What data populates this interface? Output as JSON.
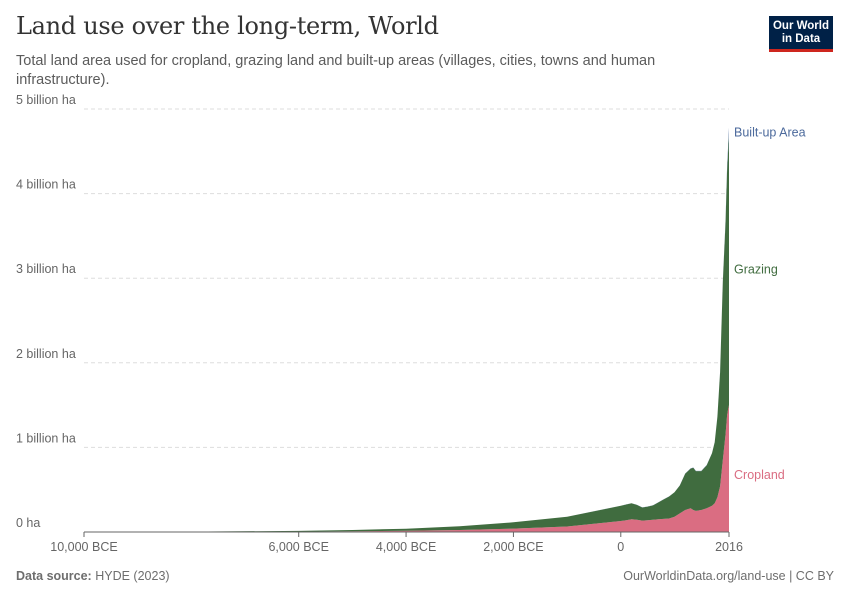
{
  "header": {
    "title": "Land use over the long-term, World",
    "subtitle": "Total land area used for cropland, grazing land and built-up areas (villages, cities, towns and human infrastructure).",
    "logo_line1": "Our World",
    "logo_line2": "in Data"
  },
  "footer": {
    "source_label": "Data source:",
    "source_value": "HYDE (2023)",
    "link": "OurWorldinData.org/land-use | CC BY"
  },
  "colors": {
    "cropland": "#da6d82",
    "grazing": "#406c3f",
    "builtup": "#4c6a9c",
    "grid": "#dddddd",
    "axis": "#666666",
    "tick_text": "#666666"
  },
  "chart_data": {
    "type": "area",
    "stacked": true,
    "xlim": [
      -10000,
      2016
    ],
    "ylim": [
      0,
      5000000000
    ],
    "x_ticks": [
      {
        "value": -10000,
        "label": "10,000 BCE"
      },
      {
        "value": -6000,
        "label": "6,000 BCE"
      },
      {
        "value": -4000,
        "label": "4,000 BCE"
      },
      {
        "value": -2000,
        "label": "2,000 BCE"
      },
      {
        "value": 0,
        "label": "0"
      },
      {
        "value": 2016,
        "label": "2016"
      }
    ],
    "y_ticks": [
      {
        "value": 0,
        "label": "0 ha"
      },
      {
        "value": 1000000000,
        "label": "1 billion ha"
      },
      {
        "value": 2000000000,
        "label": "2 billion ha"
      },
      {
        "value": 3000000000,
        "label": "3 billion ha"
      },
      {
        "value": 4000000000,
        "label": "4 billion ha"
      },
      {
        "value": 5000000000,
        "label": "5 billion ha"
      }
    ],
    "grid": "horizontal",
    "legend": "inline-right",
    "x": [
      -10000,
      -8000,
      -6000,
      -5000,
      -4000,
      -3000,
      -2000,
      -1000,
      0,
      100,
      200,
      300,
      400,
      500,
      600,
      700,
      800,
      900,
      1000,
      1100,
      1200,
      1300,
      1350,
      1400,
      1500,
      1600,
      1700,
      1750,
      1800,
      1850,
      1900,
      1950,
      1980,
      2000,
      2016
    ],
    "series": [
      {
        "name": "Cropland",
        "values": [
          1000000,
          2000000,
          5000000,
          9000000,
          14000000,
          24000000,
          40000000,
          65000000,
          130000000,
          140000000,
          150000000,
          145000000,
          135000000,
          140000000,
          145000000,
          150000000,
          155000000,
          160000000,
          180000000,
          220000000,
          260000000,
          280000000,
          260000000,
          250000000,
          260000000,
          280000000,
          310000000,
          340000000,
          410000000,
          540000000,
          850000000,
          1150000000,
          1380000000,
          1450000000,
          1500000000
        ]
      },
      {
        "name": "Grazing",
        "values": [
          1000000,
          3000000,
          8000000,
          15000000,
          25000000,
          45000000,
          75000000,
          115000000,
          180000000,
          185000000,
          190000000,
          175000000,
          155000000,
          160000000,
          170000000,
          200000000,
          230000000,
          260000000,
          290000000,
          330000000,
          430000000,
          470000000,
          500000000,
          470000000,
          460000000,
          510000000,
          620000000,
          720000000,
          950000000,
          1350000000,
          2100000000,
          2500000000,
          2900000000,
          3050000000,
          3200000000
        ]
      },
      {
        "name": "Built-up Area",
        "values": [
          0,
          0,
          0,
          0,
          0,
          0,
          0,
          0,
          1000000,
          1000000,
          1000000,
          1000000,
          1000000,
          1000000,
          1000000,
          1000000,
          1000000,
          1000000,
          1000000,
          1000000,
          1000000,
          2000000,
          2000000,
          2000000,
          2000000,
          2000000,
          3000000,
          3000000,
          4000000,
          6000000,
          10000000,
          20000000,
          40000000,
          60000000,
          80000000
        ]
      }
    ]
  }
}
